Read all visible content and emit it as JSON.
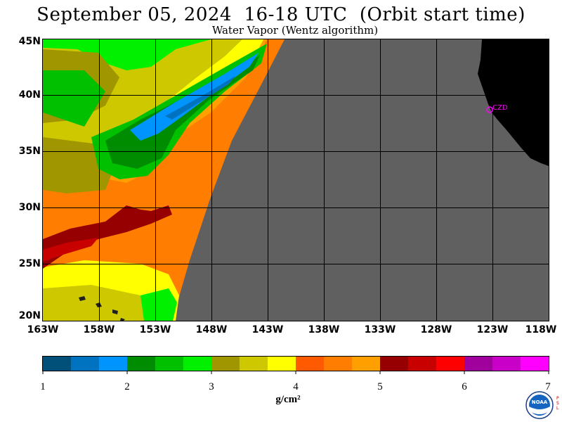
{
  "header": {
    "title": "September 05, 2024  16-18 UTC  (Orbit start time)",
    "subtitle": "Water Vapor (Wentz algorithm)"
  },
  "map": {
    "region": "Northeast Pacific Ocean",
    "lat_labels": [
      "45N",
      "40N",
      "35N",
      "30N",
      "25N",
      "20N"
    ],
    "lon_labels": [
      "163W",
      "158W",
      "153W",
      "148W",
      "143W",
      "138W",
      "133W",
      "128W",
      "123W",
      "118W"
    ],
    "lat_range": [
      20,
      45
    ],
    "lon_range": [
      -163,
      -118
    ],
    "grid": true,
    "station_label": "CZD",
    "colors": {
      "no_data": "#606060",
      "land": "#000000",
      "grid": "#000000",
      "station": "#ff00ff"
    }
  },
  "colorbar": {
    "unit": "g/cm²",
    "tick_labels": [
      "1",
      "2",
      "3",
      "4",
      "5",
      "6",
      "7"
    ],
    "range": [
      1,
      7
    ],
    "colors": [
      "#00507a",
      "#0073c0",
      "#0094ff",
      "#008c00",
      "#00c000",
      "#00f000",
      "#a09600",
      "#cdc800",
      "#ffff00",
      "#ff5a00",
      "#ff7d00",
      "#ffa000",
      "#960000",
      "#c80000",
      "#ff0000",
      "#a0009b",
      "#c800c8",
      "#ff00ff"
    ]
  },
  "logo": {
    "text": "NOAA",
    "side_text": "P S L"
  }
}
